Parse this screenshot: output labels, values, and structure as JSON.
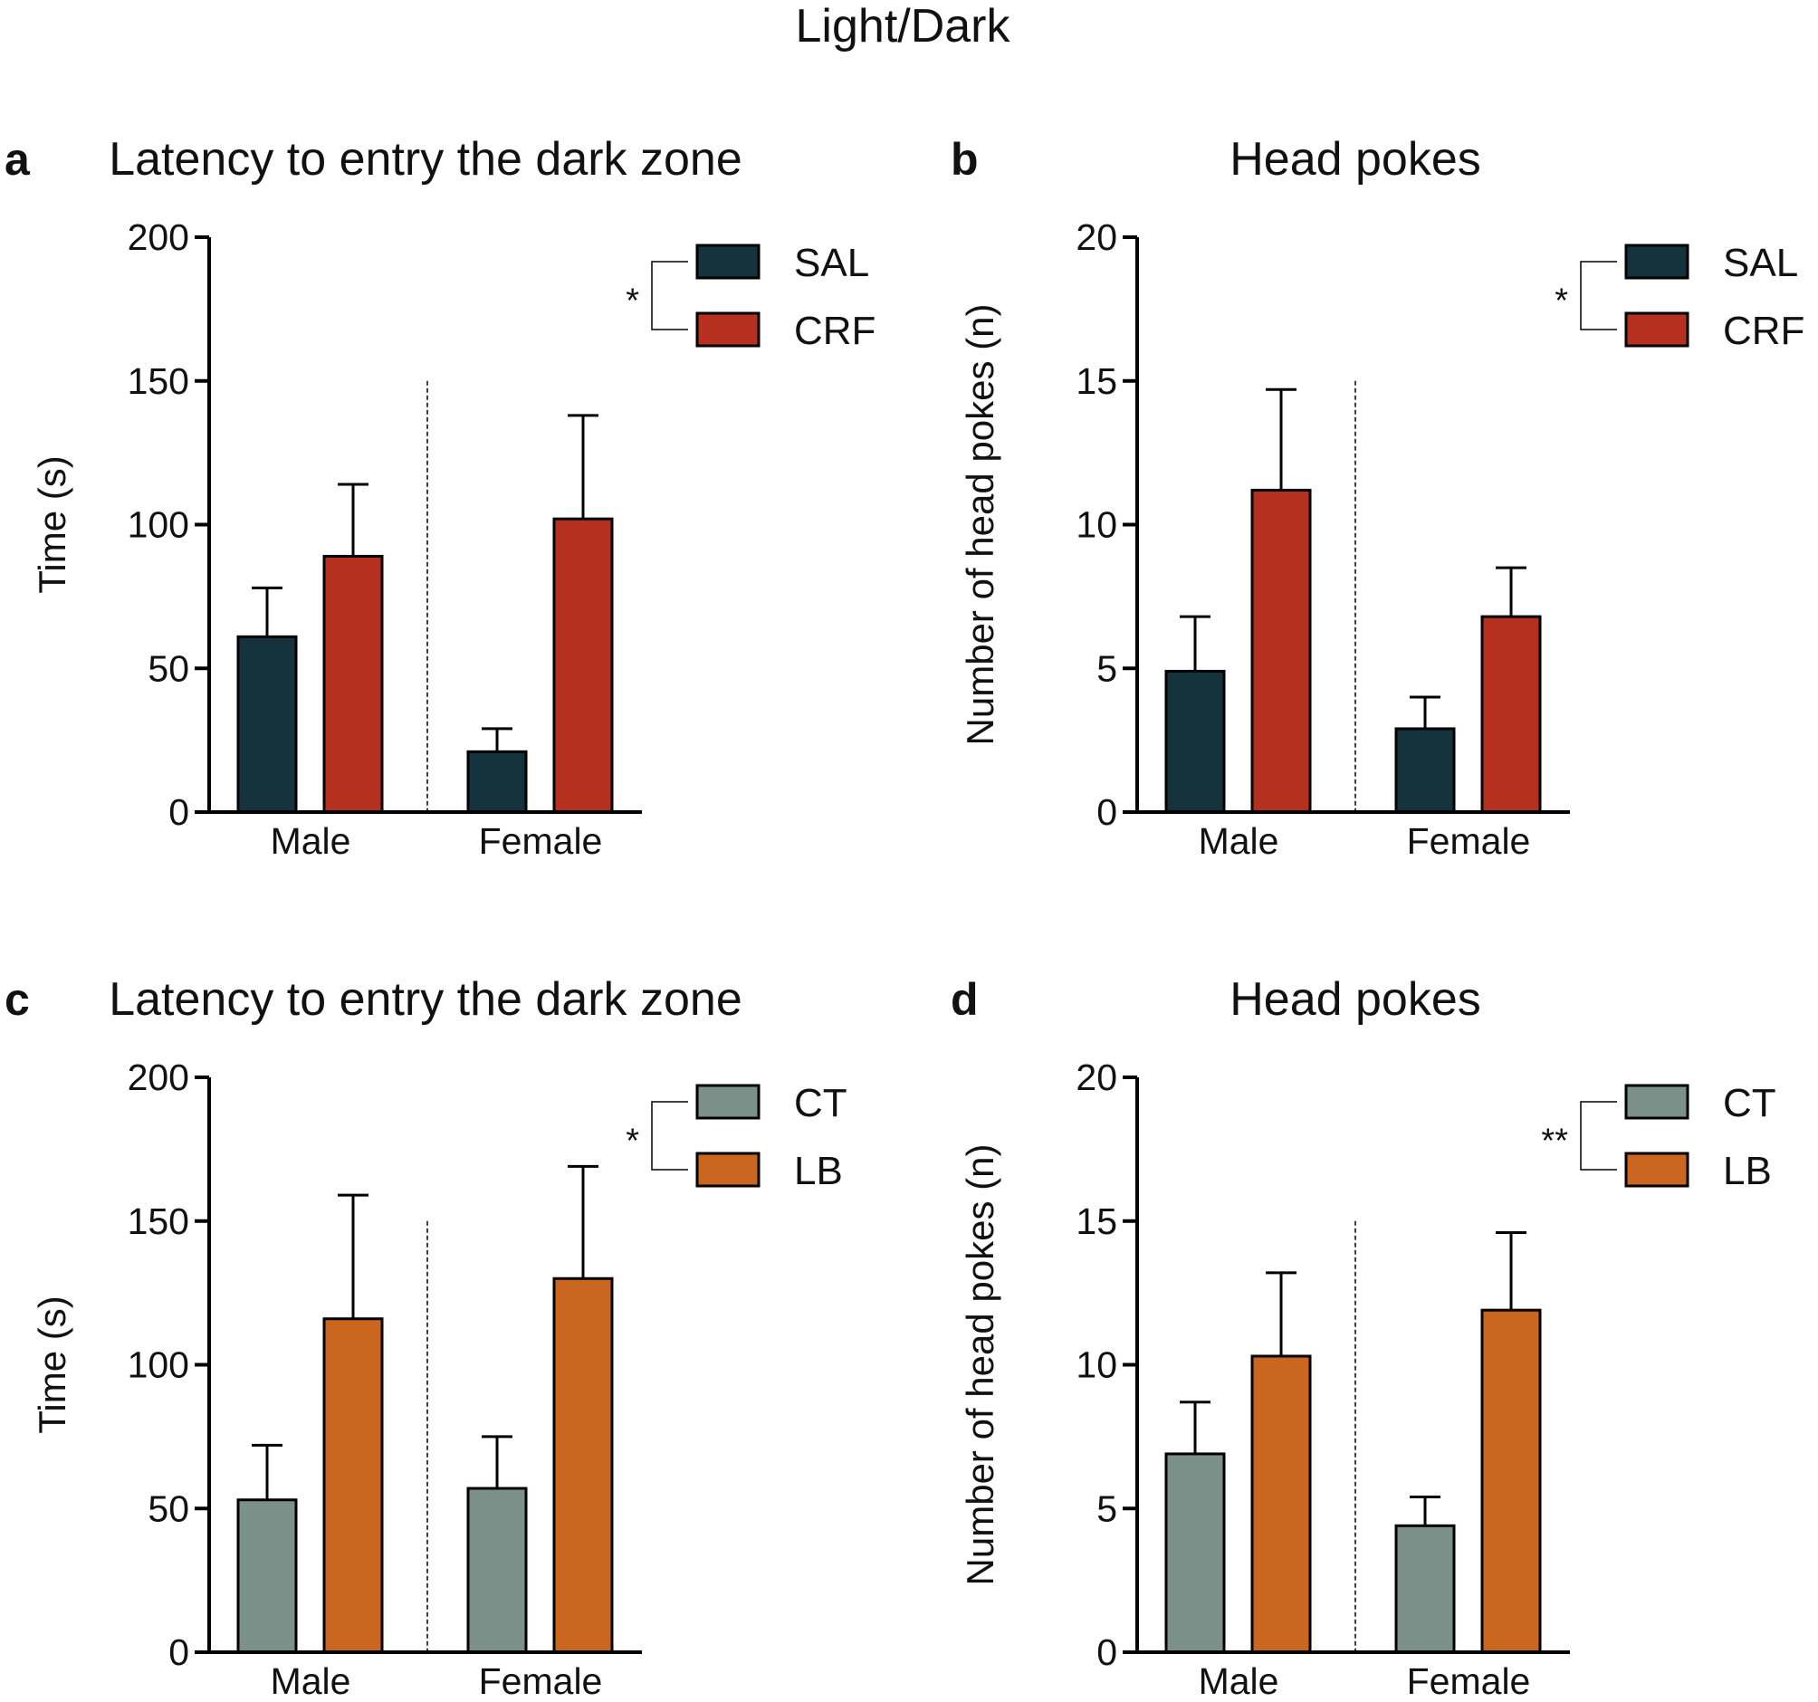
{
  "figure_title": "Light/Dark",
  "colors": {
    "SAL": "#14333d",
    "CRF": "#b5301e",
    "CT": "#7a9089",
    "LB": "#ca661f",
    "axis": "#000000"
  },
  "chart_data": [
    {
      "panel": "a",
      "type": "bar",
      "title": "Latency to entry the dark zone",
      "ylabel": "Time (s)",
      "xlabel": "",
      "ylim": [
        0,
        200
      ],
      "yticks": [
        0,
        50,
        100,
        150,
        200
      ],
      "categories": [
        "Male",
        "Female"
      ],
      "series": [
        {
          "name": "SAL",
          "color": "#14333d",
          "values": [
            61,
            21
          ],
          "errors": [
            17,
            8
          ]
        },
        {
          "name": "CRF",
          "color": "#b5301e",
          "values": [
            89,
            102
          ],
          "errors": [
            25,
            36
          ]
        }
      ],
      "significance": "*",
      "legend": "top-right"
    },
    {
      "panel": "b",
      "type": "bar",
      "title": "Head pokes",
      "ylabel": "Number of head pokes (n)",
      "xlabel": "",
      "ylim": [
        0,
        20
      ],
      "yticks": [
        0,
        5,
        10,
        15,
        20
      ],
      "categories": [
        "Male",
        "Female"
      ],
      "series": [
        {
          "name": "SAL",
          "color": "#14333d",
          "values": [
            4.9,
            2.9
          ],
          "errors": [
            1.9,
            1.1
          ]
        },
        {
          "name": "CRF",
          "color": "#b5301e",
          "values": [
            11.2,
            6.8
          ],
          "errors": [
            3.5,
            1.7
          ]
        }
      ],
      "significance": "*",
      "legend": "top-right"
    },
    {
      "panel": "c",
      "type": "bar",
      "title": "Latency to entry the dark zone",
      "ylabel": "Time (s)",
      "xlabel": "",
      "ylim": [
        0,
        200
      ],
      "yticks": [
        0,
        50,
        100,
        150,
        200
      ],
      "categories": [
        "Male",
        "Female"
      ],
      "series": [
        {
          "name": "CT",
          "color": "#7a9089",
          "values": [
            53,
            57
          ],
          "errors": [
            19,
            18
          ]
        },
        {
          "name": "LB",
          "color": "#ca661f",
          "values": [
            116,
            130
          ],
          "errors": [
            43,
            39
          ]
        }
      ],
      "significance": "*",
      "legend": "top-right"
    },
    {
      "panel": "d",
      "type": "bar",
      "title": "Head pokes",
      "ylabel": "Number of head pokes (n)",
      "xlabel": "",
      "ylim": [
        0,
        20
      ],
      "yticks": [
        0,
        5,
        10,
        15,
        20
      ],
      "categories": [
        "Male",
        "Female"
      ],
      "series": [
        {
          "name": "CT",
          "color": "#7a9089",
          "values": [
            6.9,
            4.4
          ],
          "errors": [
            1.8,
            1.0
          ]
        },
        {
          "name": "LB",
          "color": "#ca661f",
          "values": [
            10.3,
            11.9
          ],
          "errors": [
            2.9,
            2.7
          ]
        }
      ],
      "significance": "**",
      "legend": "top-right"
    }
  ]
}
